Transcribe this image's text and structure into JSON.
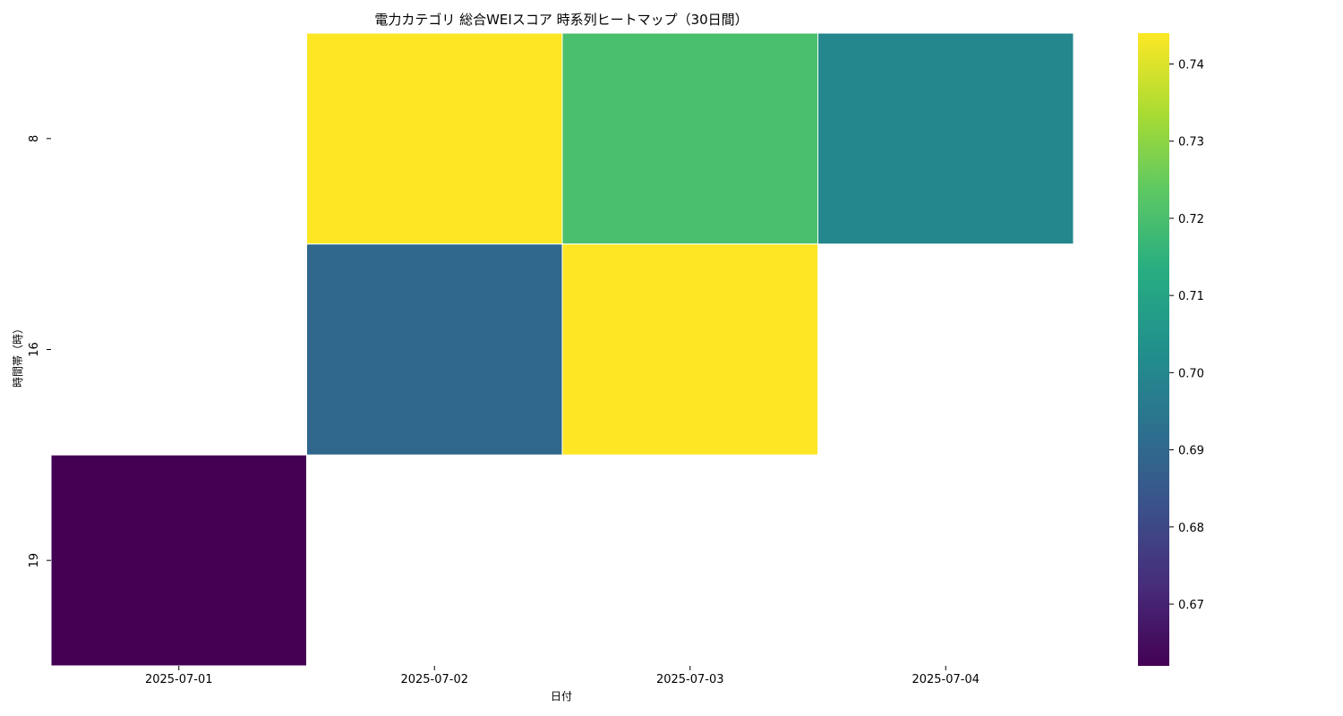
{
  "chart_data": {
    "type": "heatmap",
    "title": "電力カテゴリ 総合WEIスコア 時系列ヒートマップ（30日間）",
    "xlabel": "日付",
    "ylabel": "時間帯（時）",
    "x_categories": [
      "2025-07-01",
      "2025-07-02",
      "2025-07-03",
      "2025-07-04"
    ],
    "y_categories": [
      "8",
      "16",
      "19"
    ],
    "values": [
      [
        null,
        0.744,
        0.72,
        0.7
      ],
      [
        null,
        0.69,
        0.744,
        null
      ],
      [
        0.662,
        null,
        null,
        null
      ]
    ],
    "colormap": "viridis",
    "colorbar": {
      "range": [
        0.662,
        0.744
      ],
      "ticks": [
        "0.67",
        "0.68",
        "0.69",
        "0.70",
        "0.71",
        "0.72",
        "0.73",
        "0.74"
      ]
    },
    "cell_border_color": "#ffffff",
    "missing_color": "#ffffff"
  }
}
